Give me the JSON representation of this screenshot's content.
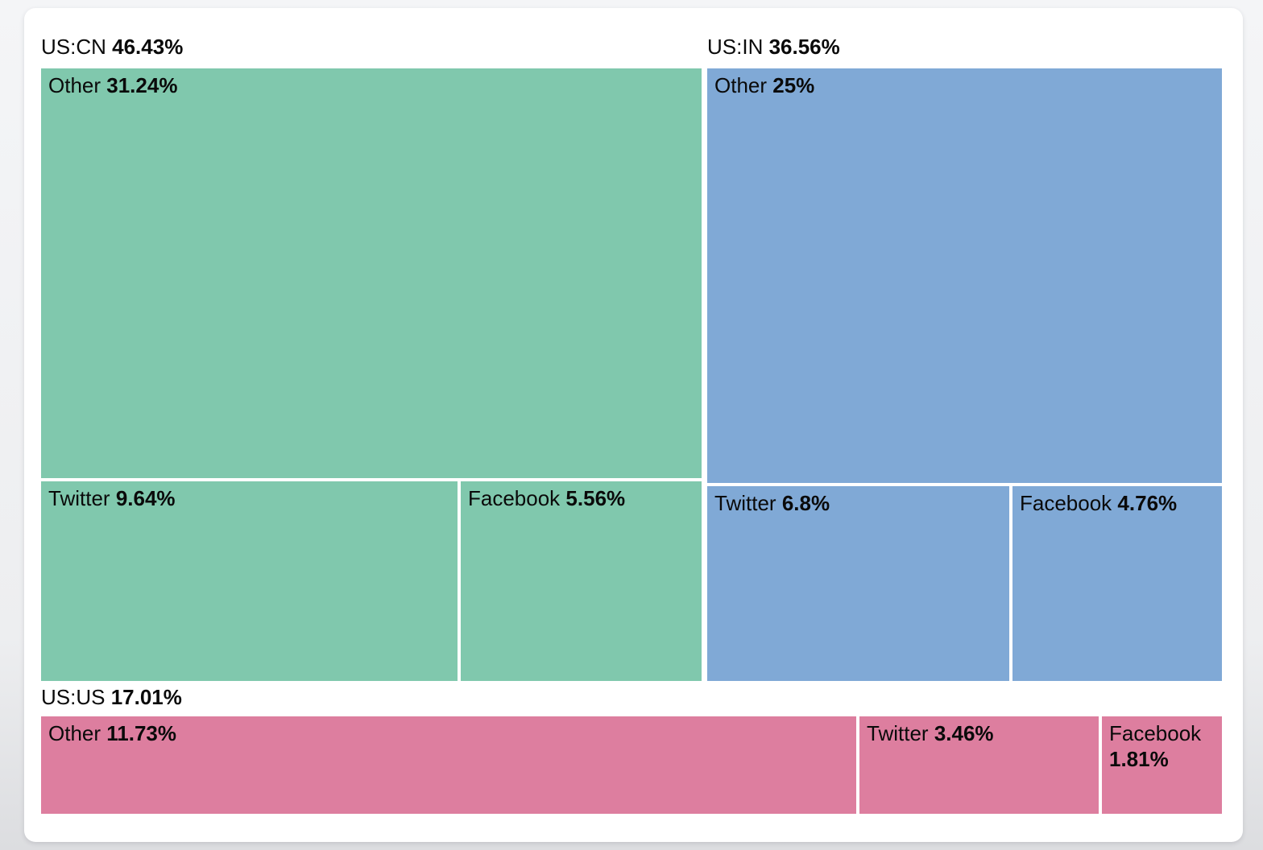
{
  "chart_data": {
    "type": "treemap",
    "title": "",
    "unit": "%",
    "layout": "three groups: US:CN top-left, US:IN top-right, US:US full-width bottom row; cell labels at top-left of each rectangle, group label above each group",
    "legend": "none",
    "colors": {
      "us_cn": "#80C8AD",
      "us_in": "#80A9D6",
      "us_us": "#DD7E9F"
    },
    "groups": [
      {
        "label": "US:CN",
        "value": 46.43,
        "value_display": "46.43%",
        "color": "#80C8AD",
        "children": [
          {
            "label": "Other",
            "value": 31.24,
            "value_display": "31.24%"
          },
          {
            "label": "Twitter",
            "value": 9.64,
            "value_display": "9.64%"
          },
          {
            "label": "Facebook",
            "value": 5.56,
            "value_display": "5.56%"
          }
        ]
      },
      {
        "label": "US:IN",
        "value": 36.56,
        "value_display": "36.56%",
        "color": "#80A9D6",
        "children": [
          {
            "label": "Other",
            "value": 25,
            "value_display": "25%"
          },
          {
            "label": "Twitter",
            "value": 6.8,
            "value_display": "6.8%"
          },
          {
            "label": "Facebook",
            "value": 4.76,
            "value_display": "4.76%"
          }
        ]
      },
      {
        "label": "US:US",
        "value": 17.01,
        "value_display": "17.01%",
        "color": "#DD7E9F",
        "children": [
          {
            "label": "Other",
            "value": 11.73,
            "value_display": "11.73%"
          },
          {
            "label": "Twitter",
            "value": 3.46,
            "value_display": "3.46%"
          },
          {
            "label": "Facebook",
            "value": 1.81,
            "value_display": "1.81%"
          }
        ]
      }
    ]
  }
}
